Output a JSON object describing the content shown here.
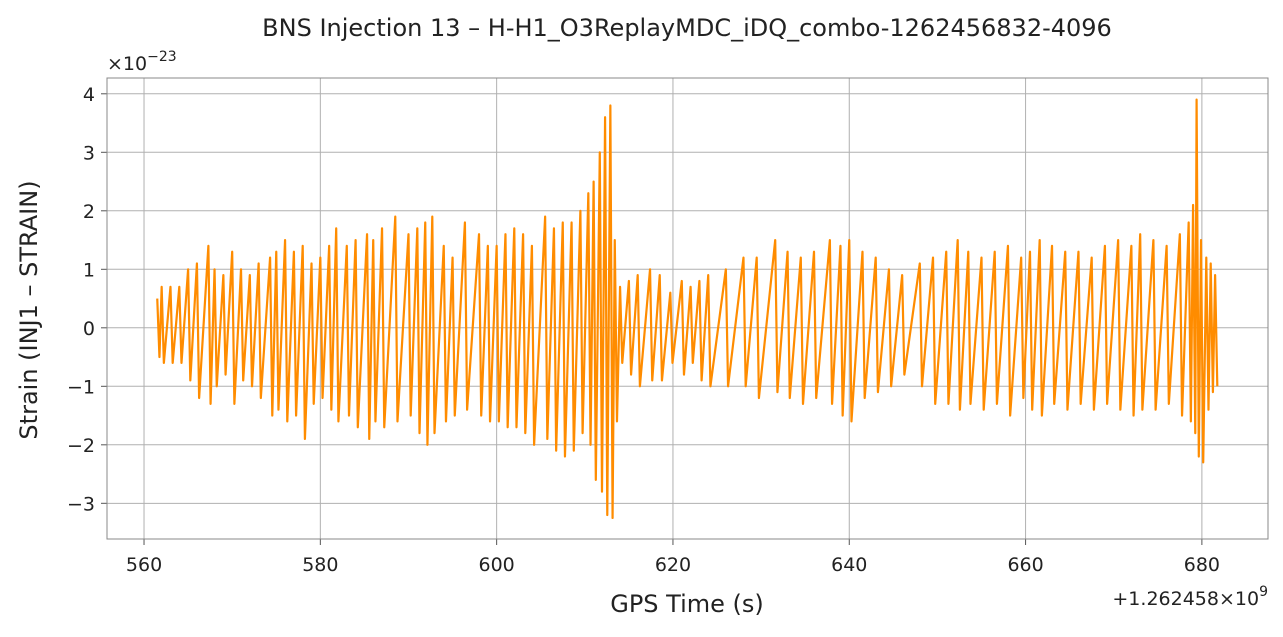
{
  "chart_data": {
    "type": "line",
    "title": "BNS Injection 13 – H-H1_O3ReplayMDC_iDQ_combo-1262456832-4096",
    "xlabel": "GPS Time (s)",
    "ylabel": "Strain (INJ1 – STRAIN)",
    "x_offset_label": {
      "text": "+1.262458×10",
      "exponent": "9"
    },
    "y_offset_label": {
      "text": "×10",
      "exponent": "−23"
    },
    "color": "#ff8c00",
    "grid": true,
    "xlim": [
      555.8,
      687.5
    ],
    "ylim": [
      -3.61,
      4.27
    ],
    "xticks": [
      560,
      580,
      600,
      620,
      640,
      660,
      680
    ],
    "yticks": [
      {
        "value": -3,
        "label": "−3"
      },
      {
        "value": -2,
        "label": "−2"
      },
      {
        "value": -1,
        "label": "−1"
      },
      0,
      1,
      2,
      3,
      4
    ],
    "x": [
      561.5,
      561.75,
      562,
      562.25,
      563,
      563.25,
      564,
      564.25,
      565,
      565.25,
      566,
      566.25,
      567.3,
      567.55,
      568,
      568.25,
      569,
      569.25,
      570,
      570.25,
      571,
      571.25,
      572,
      572.25,
      573,
      573.25,
      574.3,
      574.55,
      575,
      575.25,
      576,
      576.25,
      577,
      577.25,
      578,
      578.25,
      579,
      579.25,
      580,
      580.25,
      581,
      581.25,
      581.8,
      582.05,
      583,
      583.25,
      584,
      584.25,
      585.3,
      585.55,
      586,
      586.25,
      587,
      587.25,
      588.5,
      588.75,
      590,
      590.25,
      591,
      591.25,
      591.9,
      592.15,
      592.7,
      592.95,
      594,
      594.25,
      595,
      595.25,
      596.4,
      596.65,
      598,
      598.25,
      599,
      599.25,
      600,
      600.25,
      601,
      601.25,
      602,
      602.25,
      603,
      603.25,
      604,
      604.25,
      605.5,
      605.75,
      606.5,
      606.75,
      607.5,
      607.75,
      608.5,
      608.75,
      609.5,
      609.75,
      610.4,
      610.65,
      611,
      611.25,
      611.7,
      611.95,
      612.3,
      612.55,
      612.9,
      613.15,
      613.4,
      613.65,
      614,
      614.25,
      615,
      615.25,
      616,
      616.25,
      617.4,
      617.65,
      618.5,
      618.75,
      619.7,
      619.95,
      621,
      621.25,
      622,
      622.25,
      623,
      623.25,
      624,
      624.25,
      626,
      626.25,
      628,
      628.25,
      629.5,
      629.75,
      631.6,
      631.85,
      633,
      633.25,
      634.5,
      634.75,
      636,
      636.25,
      637.8,
      638.05,
      639,
      639.25,
      640,
      640.25,
      641.5,
      641.75,
      643,
      643.25,
      644.5,
      644.75,
      646,
      646.25,
      648,
      648.25,
      649.5,
      649.75,
      651,
      651.25,
      652.3,
      652.55,
      653.5,
      653.75,
      655,
      655.25,
      656.5,
      656.75,
      658,
      658.25,
      659.5,
      659.75,
      660.5,
      660.75,
      661.6,
      661.85,
      663,
      663.25,
      664.5,
      664.75,
      666,
      666.25,
      667.5,
      667.75,
      669,
      669.25,
      670.5,
      670.75,
      672,
      672.25,
      673,
      673.25,
      674.5,
      674.75,
      676,
      676.25,
      677.5,
      677.75,
      678.5,
      678.75,
      679,
      679.25,
      679.4,
      679.65,
      679.9,
      680.15,
      680.5,
      680.75,
      681,
      681.25,
      681.5,
      681.75
    ],
    "values": [
      0.5,
      -0.5,
      0.7,
      -0.6,
      0.7,
      -0.6,
      0.7,
      -0.6,
      1.0,
      -0.9,
      1.1,
      -1.2,
      1.4,
      -1.3,
      1.0,
      -1.0,
      0.9,
      -0.8,
      1.3,
      -1.3,
      1.0,
      -0.9,
      0.9,
      -1.0,
      1.1,
      -1.2,
      1.2,
      -1.5,
      1.3,
      -1.4,
      1.5,
      -1.6,
      1.3,
      -1.5,
      1.4,
      -1.9,
      1.1,
      -1.3,
      1.2,
      -1.2,
      1.4,
      -1.4,
      1.7,
      -1.6,
      1.4,
      -1.5,
      1.5,
      -1.7,
      1.6,
      -1.9,
      1.5,
      -1.6,
      1.7,
      -1.7,
      1.9,
      -1.6,
      1.6,
      -1.5,
      1.7,
      -1.8,
      1.8,
      -2.0,
      1.9,
      -1.8,
      1.4,
      -1.6,
      1.2,
      -1.5,
      1.8,
      -1.4,
      1.6,
      -1.5,
      1.4,
      -1.6,
      1.4,
      -1.6,
      1.6,
      -1.7,
      1.7,
      -1.7,
      1.6,
      -1.8,
      1.4,
      -2.0,
      1.9,
      -1.9,
      1.7,
      -2.1,
      1.8,
      -2.2,
      1.8,
      -2.1,
      2.0,
      -1.8,
      2.3,
      -2.0,
      2.5,
      -2.6,
      3.0,
      -2.8,
      3.6,
      -3.2,
      3.8,
      -3.25,
      1.5,
      -1.6,
      0.7,
      -0.6,
      0.8,
      -0.8,
      0.9,
      -1.0,
      1.0,
      -0.9,
      0.9,
      -0.9,
      0.6,
      -0.6,
      0.8,
      -0.8,
      0.7,
      -0.6,
      0.8,
      -0.9,
      0.9,
      -1.0,
      1.0,
      -1.0,
      1.2,
      -1.0,
      1.2,
      -1.2,
      1.5,
      -1.1,
      1.3,
      -1.2,
      1.2,
      -1.3,
      1.3,
      -1.2,
      1.5,
      -1.3,
      1.4,
      -1.5,
      1.5,
      -1.6,
      1.3,
      -1.2,
      1.2,
      -1.1,
      1.0,
      -1.0,
      0.9,
      -0.8,
      1.1,
      -1.0,
      1.2,
      -1.3,
      1.3,
      -1.3,
      1.5,
      -1.4,
      1.3,
      -1.3,
      1.2,
      -1.4,
      1.3,
      -1.3,
      1.4,
      -1.5,
      1.2,
      -1.2,
      1.3,
      -1.4,
      1.5,
      -1.5,
      1.4,
      -1.3,
      1.3,
      -1.4,
      1.3,
      -1.3,
      1.2,
      -1.4,
      1.4,
      -1.3,
      1.5,
      -1.4,
      1.4,
      -1.5,
      1.6,
      -1.4,
      1.5,
      -1.4,
      1.4,
      -1.3,
      1.6,
      -1.5,
      1.8,
      -1.6,
      2.1,
      -1.8,
      3.9,
      -2.2,
      1.5,
      -2.3,
      1.2,
      -1.4,
      1.1,
      -1.1,
      0.9,
      -1.0
    ]
  }
}
